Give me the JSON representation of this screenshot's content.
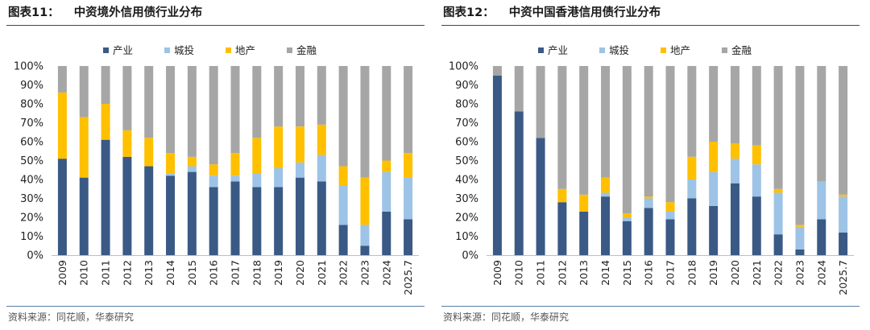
{
  "colors": {
    "产业": "#3a5a85",
    "城投": "#9dc3e6",
    "地产": "#ffc000",
    "金融": "#a6a6a6"
  },
  "source_text": "资料来源：同花顺，华泰研究",
  "chart_data": [
    {
      "type": "bar",
      "stacked": "percent",
      "fig_label": "图表11：",
      "title": "中资境外信用债行业分布",
      "categories": [
        "2009",
        "2010",
        "2011",
        "2012",
        "2013",
        "2014",
        "2015",
        "2016",
        "2017",
        "2018",
        "2019",
        "2020",
        "2021",
        "2022",
        "2023",
        "2024",
        "2025.7"
      ],
      "yticks": [
        "0%",
        "10%",
        "20%",
        "30%",
        "40%",
        "50%",
        "60%",
        "70%",
        "80%",
        "90%",
        "100%"
      ],
      "ylim": [
        0,
        100
      ],
      "legend_position": "top",
      "series": [
        {
          "name": "产业",
          "values": [
            51,
            41,
            61,
            52,
            47,
            42,
            44,
            36,
            39,
            36,
            36,
            41,
            39,
            16,
            5,
            23,
            19
          ]
        },
        {
          "name": "城投",
          "values": [
            0,
            0,
            0,
            0,
            0,
            1,
            3,
            6,
            3,
            7,
            10,
            8,
            14,
            21,
            11,
            21,
            22
          ]
        },
        {
          "name": "地产",
          "values": [
            35,
            32,
            19,
            14,
            15,
            11,
            5,
            6,
            12,
            19,
            22,
            19,
            16,
            10,
            25,
            6,
            13
          ]
        },
        {
          "name": "金融",
          "values": [
            14,
            27,
            20,
            34,
            38,
            46,
            48,
            52,
            46,
            38,
            32,
            32,
            31,
            53,
            59,
            50,
            46
          ]
        }
      ]
    },
    {
      "type": "bar",
      "stacked": "percent",
      "fig_label": "图表12：",
      "title": "中资中国香港信用债行业分布",
      "categories": [
        "2009",
        "2010",
        "2011",
        "2012",
        "2013",
        "2014",
        "2015",
        "2016",
        "2017",
        "2018",
        "2019",
        "2020",
        "2021",
        "2022",
        "2023",
        "2024",
        "2025.7"
      ],
      "yticks": [
        "0%",
        "10%",
        "20%",
        "30%",
        "40%",
        "50%",
        "60%",
        "70%",
        "80%",
        "90%",
        "100%"
      ],
      "ylim": [
        0,
        100
      ],
      "legend_position": "top",
      "series": [
        {
          "name": "产业",
          "values": [
            95,
            76,
            62,
            28,
            23,
            31,
            18,
            25,
            19,
            30,
            26,
            38,
            31,
            11,
            3,
            19,
            12
          ]
        },
        {
          "name": "城投",
          "values": [
            0,
            0,
            0,
            0,
            0,
            2,
            2,
            5,
            4,
            10,
            18,
            13,
            17,
            22,
            12,
            20,
            19
          ]
        },
        {
          "name": "地产",
          "values": [
            0,
            0,
            0,
            7,
            9,
            8,
            2,
            1,
            5,
            12,
            16,
            8,
            10,
            2,
            1,
            0,
            1
          ]
        },
        {
          "name": "金融",
          "values": [
            5,
            24,
            38,
            65,
            68,
            59,
            78,
            69,
            72,
            48,
            40,
            41,
            42,
            65,
            84,
            61,
            68
          ]
        }
      ]
    }
  ]
}
